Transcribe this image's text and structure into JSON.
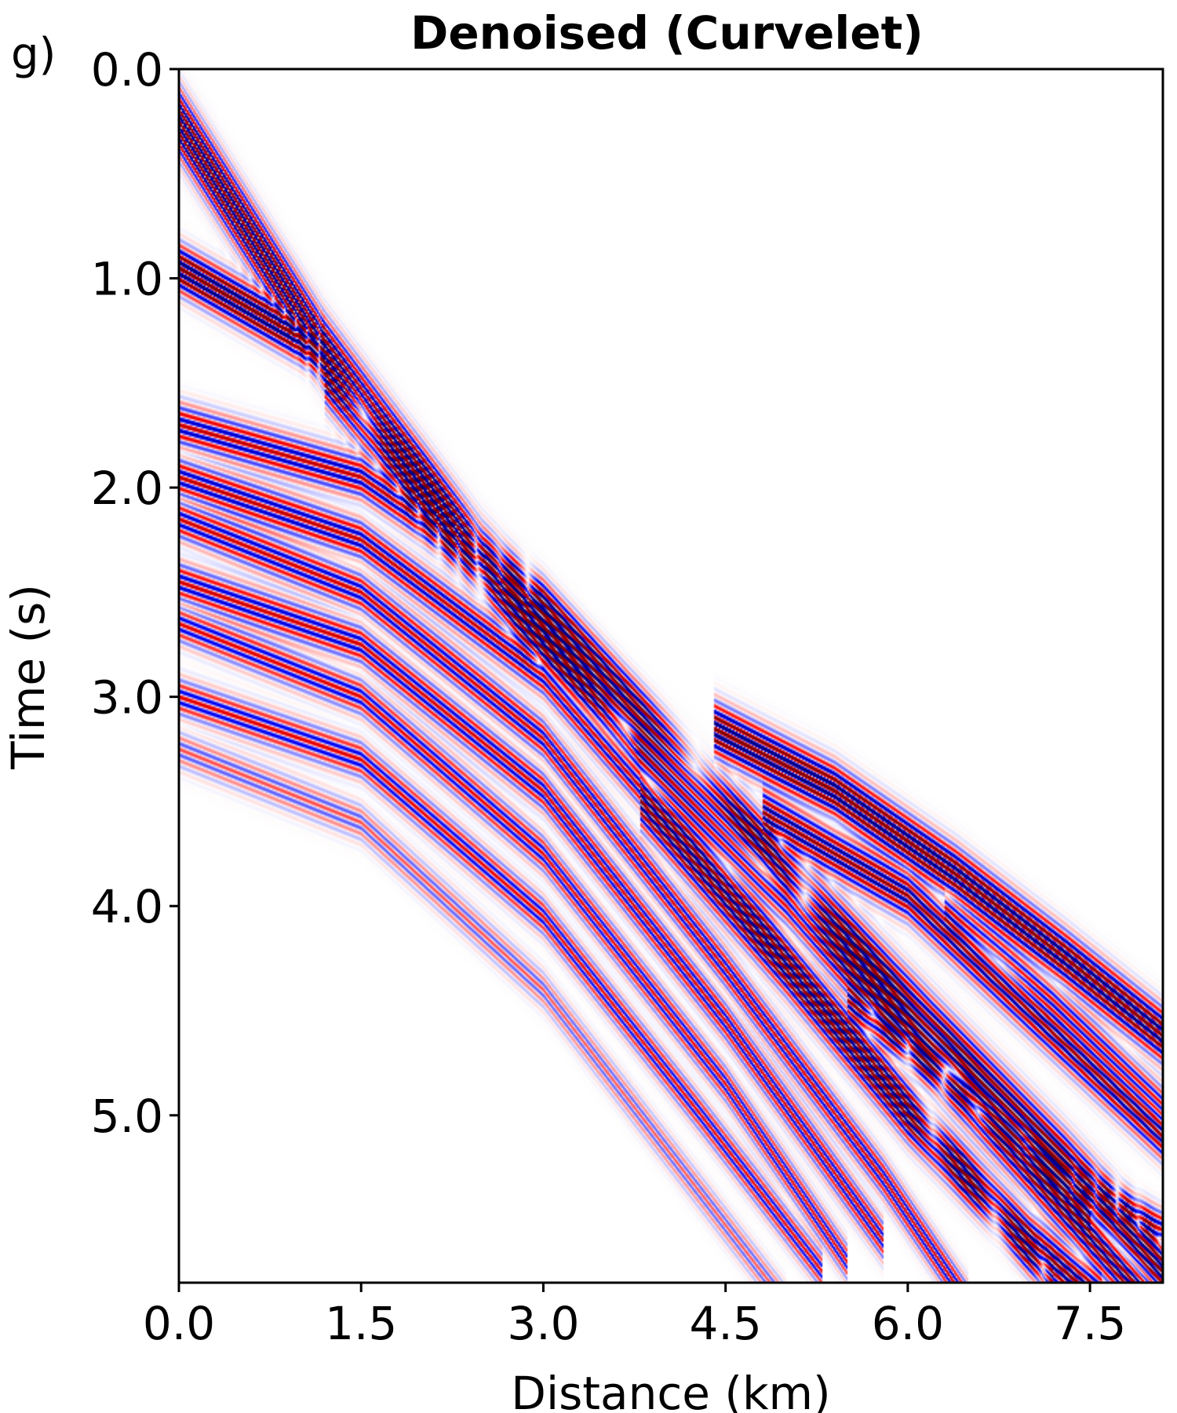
{
  "panel_label": "g)",
  "chart_data": {
    "type": "heatmap",
    "title": "Denoised (Curvelet)",
    "xlabel": "Distance (km)",
    "ylabel": "Time (s)",
    "xlim": [
      0.0,
      8.1
    ],
    "ylim": [
      5.8,
      0.0
    ],
    "y_inverted": true,
    "grid": false,
    "colormap": "seismic (blue-white-red)",
    "xticks": [
      {
        "value": 0.0,
        "label": "0.0"
      },
      {
        "value": 1.5,
        "label": "1.5"
      },
      {
        "value": 3.0,
        "label": "3.0"
      },
      {
        "value": 4.5,
        "label": "4.5"
      },
      {
        "value": 6.0,
        "label": "6.0"
      },
      {
        "value": 7.5,
        "label": "7.5"
      }
    ],
    "yticks": [
      {
        "value": 0.0,
        "label": "0.0"
      },
      {
        "value": 1.0,
        "label": "1.0"
      },
      {
        "value": 2.0,
        "label": "2.0"
      },
      {
        "value": 3.0,
        "label": "3.0"
      },
      {
        "value": 4.0,
        "label": "4.0"
      },
      {
        "value": 5.0,
        "label": "5.0"
      }
    ],
    "events": [
      {
        "points": [
          [
            0.0,
            0.25
          ],
          [
            1.2,
            1.35
          ],
          [
            2.5,
            2.35
          ],
          [
            3.7,
            3.1
          ],
          [
            4.8,
            3.75
          ],
          [
            6.2,
            4.6
          ],
          [
            7.3,
            5.25
          ],
          [
            8.1,
            5.75
          ]
        ],
        "strength": 1.0,
        "width": 0.2
      },
      {
        "points": [
          [
            0.0,
            0.95
          ],
          [
            0.6,
            1.15
          ],
          [
            1.2,
            1.35
          ]
        ],
        "strength": 1.0,
        "width": 0.14
      },
      {
        "points": [
          [
            1.2,
            1.45
          ],
          [
            2.6,
            2.45
          ],
          [
            3.8,
            3.25
          ],
          [
            5.0,
            3.95
          ],
          [
            6.4,
            4.85
          ],
          [
            8.1,
            5.95
          ]
        ],
        "strength": 0.9,
        "width": 0.18
      },
      {
        "points": [
          [
            4.4,
            3.15
          ],
          [
            5.4,
            3.45
          ],
          [
            6.4,
            3.85
          ],
          [
            7.3,
            4.25
          ],
          [
            8.1,
            4.62
          ]
        ],
        "strength": 0.95,
        "width": 0.16
      },
      {
        "points": [
          [
            4.8,
            3.55
          ],
          [
            6.0,
            3.95
          ],
          [
            7.0,
            4.5
          ],
          [
            8.1,
            5.1
          ]
        ],
        "strength": 0.7,
        "width": 0.15
      },
      {
        "points": [
          [
            3.8,
            3.5
          ],
          [
            5.0,
            4.3
          ],
          [
            6.0,
            5.0
          ],
          [
            7.0,
            5.6
          ],
          [
            7.6,
            5.9
          ]
        ],
        "strength": 0.8,
        "width": 0.16
      },
      {
        "points": [
          [
            0.0,
            1.7
          ],
          [
            1.5,
            1.95
          ],
          [
            3.0,
            2.55
          ],
          [
            4.5,
            3.5
          ],
          [
            6.0,
            4.5
          ],
          [
            7.5,
            5.5
          ]
        ],
        "strength": 0.55,
        "width": 0.14
      },
      {
        "points": [
          [
            0.0,
            1.95
          ],
          [
            1.5,
            2.25
          ],
          [
            3.0,
            2.9
          ],
          [
            4.5,
            3.9
          ],
          [
            6.0,
            4.95
          ],
          [
            7.2,
            5.8
          ]
        ],
        "strength": 0.55,
        "width": 0.13
      },
      {
        "points": [
          [
            0.0,
            2.15
          ],
          [
            1.5,
            2.5
          ],
          [
            3.0,
            3.2
          ],
          [
            4.5,
            4.3
          ],
          [
            5.8,
            5.3
          ],
          [
            6.5,
            5.9
          ]
        ],
        "strength": 0.5,
        "width": 0.13
      },
      {
        "points": [
          [
            0.0,
            2.45
          ],
          [
            1.5,
            2.75
          ],
          [
            3.0,
            3.45
          ],
          [
            4.5,
            4.55
          ],
          [
            5.8,
            5.6
          ]
        ],
        "strength": 0.5,
        "width": 0.13
      },
      {
        "points": [
          [
            0.0,
            2.65
          ],
          [
            1.5,
            3.0
          ],
          [
            3.0,
            3.75
          ],
          [
            4.5,
            4.85
          ],
          [
            5.5,
            5.7
          ]
        ],
        "strength": 0.45,
        "width": 0.12
      },
      {
        "points": [
          [
            0.0,
            3.0
          ],
          [
            1.5,
            3.3
          ],
          [
            3.0,
            4.05
          ],
          [
            4.3,
            5.0
          ],
          [
            5.3,
            5.75
          ]
        ],
        "strength": 0.45,
        "width": 0.12
      },
      {
        "points": [
          [
            0.0,
            3.25
          ],
          [
            1.5,
            3.6
          ],
          [
            3.0,
            4.4
          ],
          [
            4.2,
            5.3
          ],
          [
            5.0,
            5.9
          ]
        ],
        "strength": 0.25,
        "width": 0.12
      },
      {
        "points": [
          [
            5.5,
            4.45
          ],
          [
            6.5,
            4.9
          ],
          [
            7.3,
            5.3
          ],
          [
            8.1,
            5.55
          ]
        ],
        "strength": 0.6,
        "width": 0.12
      },
      {
        "points": [
          [
            6.3,
            4.0
          ],
          [
            7.2,
            4.45
          ],
          [
            8.1,
            4.95
          ]
        ],
        "strength": 0.4,
        "width": 0.12
      }
    ]
  }
}
